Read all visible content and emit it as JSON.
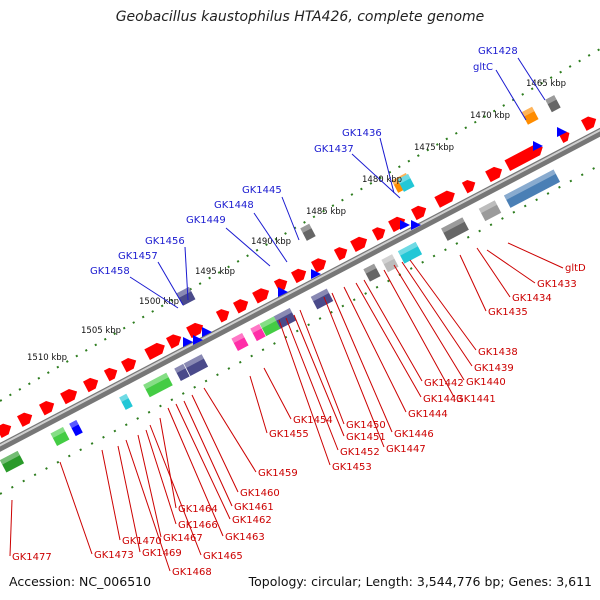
{
  "title": "Geobacillus kaustophilus HTA426, complete genome",
  "accession": "Accession: NC_006510",
  "summary": "Topology: circular; Length: 3,544,776 bp; Genes: 3,611",
  "scale_ticks": [
    "1465 kbp",
    "1470 kbp",
    "1475 kbp",
    "1480 kbp",
    "1485 kbp",
    "1490 kbp",
    "1495 kbp",
    "1500 kbp",
    "1505 kbp",
    "1510 kbp"
  ],
  "outer_labels": [
    "GK1428",
    "gltC",
    "GK1436",
    "GK1437",
    "GK1445",
    "GK1448",
    "GK1449",
    "GK1456",
    "GK1457",
    "GK1458"
  ],
  "inner_labels": [
    "gltD",
    "GK1433",
    "GK1434",
    "GK1435",
    "GK1438",
    "GK1439",
    "GK1440",
    "GK1441",
    "GK1442",
    "GK1443",
    "GK1444",
    "GK1446",
    "GK1447",
    "GK1450",
    "GK1451",
    "GK1452",
    "GK1453",
    "GK1454",
    "GK1455",
    "GK1459",
    "GK1460",
    "GK1461",
    "GK1462",
    "GK1463",
    "GK1464",
    "GK1465",
    "GK1466",
    "GK1467",
    "GK1468",
    "GK1469",
    "GK1470",
    "GK1473",
    "GK1477"
  ],
  "colors": {
    "backbone": "#8a8a8a",
    "gene_red": "#ff0000",
    "gene_blue": "#0000ff",
    "outer_label": "#1a1ad0",
    "inner_label": "#cc0000",
    "ring_dots": "#2e7d1f"
  }
}
